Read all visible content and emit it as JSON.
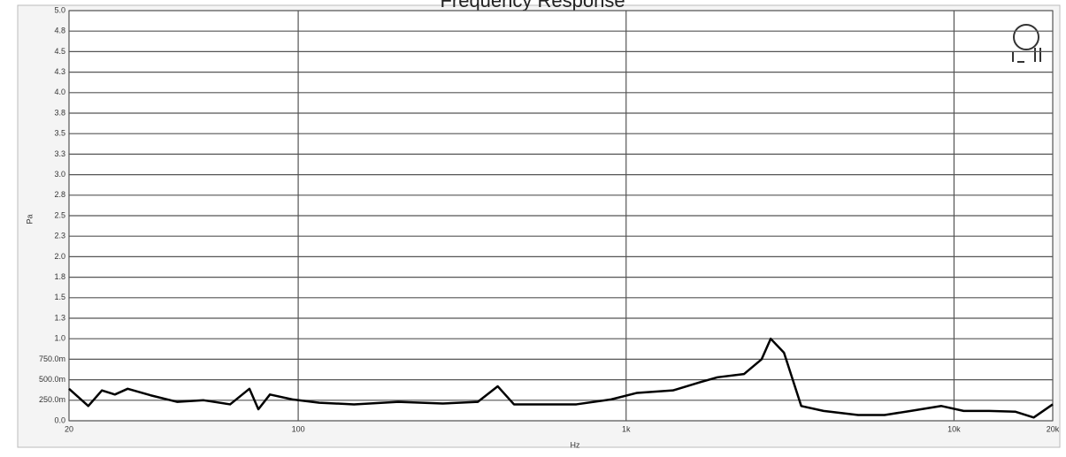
{
  "chart_data": {
    "type": "line",
    "title": "Frequency Response",
    "xlabel": "Hz",
    "ylabel": "Pa",
    "x": [
      20,
      22.9,
      25.2,
      27.6,
      30.2,
      35.5,
      42.8,
      51.5,
      62,
      71,
      75.6,
      82,
      96,
      116,
      148,
      202,
      276,
      353,
      406,
      455,
      705,
      900,
      1080,
      1390,
      1680,
      1900,
      2290,
      2590,
      2760,
      3030,
      3420,
      4000,
      5100,
      6140,
      7380,
      9150,
      10700,
      12800,
      15400,
      17500,
      20000
    ],
    "series": [
      {
        "name": "Response",
        "color": "#000000",
        "values": [
          0.39,
          0.18,
          0.37,
          0.32,
          0.39,
          0.31,
          0.23,
          0.25,
          0.2,
          0.39,
          0.14,
          0.32,
          0.26,
          0.22,
          0.2,
          0.23,
          0.21,
          0.23,
          0.42,
          0.2,
          0.2,
          0.26,
          0.34,
          0.37,
          0.47,
          0.53,
          0.57,
          0.75,
          1.0,
          0.83,
          0.18,
          0.12,
          0.07,
          0.07,
          0.12,
          0.18,
          0.12,
          0.12,
          0.11,
          0.04,
          0.2
        ]
      }
    ],
    "xscale": "log",
    "xlim": [
      20,
      20000
    ],
    "xticks": [
      20,
      100,
      {
        "value": 1000,
        "label": "1k"
      },
      {
        "value": 10000,
        "label": "10k"
      },
      {
        "value": 20000,
        "label": "20k"
      }
    ],
    "ylim": [
      0,
      5
    ],
    "yticks": [
      {
        "value": 0,
        "label": "0.0"
      },
      {
        "value": 0.25,
        "label": "250.0m"
      },
      {
        "value": 0.5,
        "label": "500.0m"
      },
      {
        "value": 0.75,
        "label": "750.0m"
      },
      {
        "value": 1,
        "label": "1.0"
      },
      {
        "value": 1.25,
        "label": "1.3"
      },
      1.5,
      {
        "value": 1.75,
        "label": "1.8"
      },
      {
        "value": 2,
        "label": "2.0"
      },
      {
        "value": 2.25,
        "label": "2.3"
      },
      2.5,
      {
        "value": 2.75,
        "label": "2.8"
      },
      {
        "value": 3,
        "label": "3.0"
      },
      {
        "value": 3.25,
        "label": "3.3"
      },
      3.5,
      {
        "value": 3.75,
        "label": "3.8"
      },
      {
        "value": 4,
        "label": "4.0"
      },
      {
        "value": 4.25,
        "label": "4.3"
      },
      4.5,
      {
        "value": 4.75,
        "label": "4.8"
      },
      {
        "value": 5,
        "label": "5.0"
      }
    ],
    "grid": true
  }
}
